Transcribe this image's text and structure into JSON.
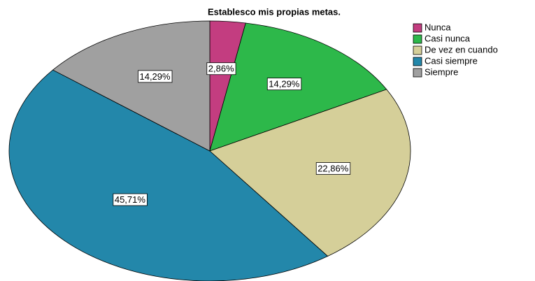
{
  "chart_data": {
    "type": "pie",
    "title": "Establesco mis propias metas.",
    "categories": [
      "Nunca",
      "Casi nunca",
      "De vez en cuando",
      "Casi siempre",
      "Siempre"
    ],
    "values": [
      2.86,
      14.29,
      22.86,
      45.71,
      14.29
    ],
    "value_labels": [
      "2,86%",
      "14,29%",
      "22,86%",
      "45,71%",
      "14,29%"
    ],
    "colors": [
      "#c33d80",
      "#2db84a",
      "#d5cf99",
      "#2387aa",
      "#a0a0a0"
    ],
    "legend": "top-right"
  }
}
